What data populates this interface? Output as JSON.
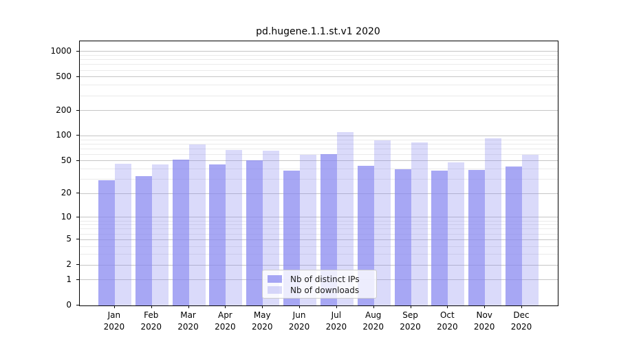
{
  "figure": {
    "title": "pd.hugene.1.1.st.v1 2020"
  },
  "chart_data": {
    "type": "bar",
    "title": "pd.hugene.1.1.st.v1 2020",
    "xlabel": "",
    "ylabel": "",
    "y_scale": "log1p",
    "ylim": [
      0,
      1300
    ],
    "grid": "on",
    "legend_position": "lower center",
    "categories": [
      "Jan",
      "Feb",
      "Mar",
      "Apr",
      "May",
      "Jun",
      "Jul",
      "Aug",
      "Sep",
      "Oct",
      "Nov",
      "Dec"
    ],
    "x_year": "2020",
    "y_major_ticks": [
      0,
      1,
      2,
      5,
      10,
      20,
      50,
      100,
      200,
      500,
      1000
    ],
    "y_minor_ticks": [
      3,
      4,
      6,
      7,
      8,
      9,
      30,
      40,
      60,
      70,
      80,
      90,
      300,
      400,
      600,
      700,
      800,
      900
    ],
    "series": [
      {
        "name": "Nb of distinct IPs",
        "values": [
          29,
          33,
          52,
          45,
          51,
          38,
          60,
          44,
          40,
          38,
          39,
          43
        ],
        "color_base": "#8585f0",
        "color_rendered": "#a6a6f4",
        "alpha": 0.72
      },
      {
        "name": "Nb of downloads",
        "values": [
          46,
          45,
          79,
          68,
          67,
          59,
          110,
          88,
          83,
          48,
          93,
          59
        ],
        "color_base": "#8585f0",
        "color_rendered": "#dadaf8",
        "alpha": 0.3
      }
    ]
  }
}
